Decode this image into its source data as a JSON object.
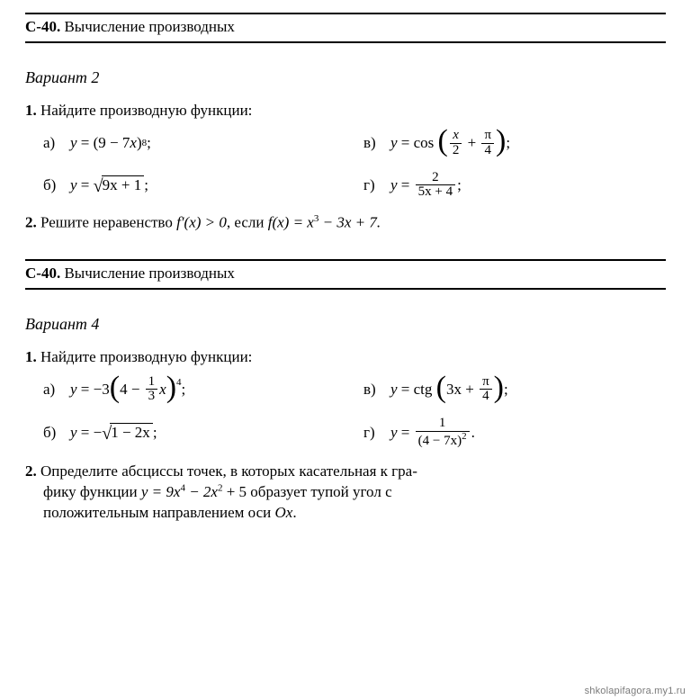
{
  "header": {
    "code": "С-40.",
    "title": "Вычисление производных"
  },
  "variant2": {
    "label": "Вариант 2",
    "task1": {
      "num": "1.",
      "text": "Найдите производную функции:",
      "a": {
        "label": "а)",
        "lhs": "y",
        "eq": "=",
        "rhs_open": "(9 − 7",
        "rhs_var": "x",
        "rhs_close": ")",
        "exp": "8",
        "tail": ";"
      },
      "v": {
        "label": "в)",
        "lhs": "y",
        "eq": "= cos",
        "frac1_top": "x",
        "frac1_bot": "2",
        "plus": "+",
        "frac2_top": "π",
        "frac2_bot": "4",
        "tail": ";"
      },
      "b": {
        "label": "б)",
        "lhs": "y",
        "eq": "=",
        "rad": "9x + 1",
        "tail": ";"
      },
      "g": {
        "label": "г)",
        "lhs": "y",
        "eq": "=",
        "frac_top": "2",
        "frac_bot": "5x + 4",
        "tail": ";"
      }
    },
    "task2": {
      "num": "2.",
      "text_a": "Решите неравенство ",
      "expr1": "f′(x) > 0",
      "text_b": ", если ",
      "expr2": "f(x) = x",
      "exp3": "3",
      "text_c": " − 3x + 7."
    }
  },
  "variant4": {
    "label": "Вариант 4",
    "task1": {
      "num": "1.",
      "text": "Найдите производную функции:",
      "a": {
        "label": "а)",
        "lhs": "y",
        "eq": "= −3",
        "inner1": "4 −",
        "frac_top": "1",
        "frac_bot": "3",
        "inner2": "x",
        "exp": "4",
        "tail": ";"
      },
      "v": {
        "label": "в)",
        "lhs": "y",
        "eq": "= ctg",
        "inner1": "3x +",
        "frac_top": "π",
        "frac_bot": "4",
        "tail": ";"
      },
      "b": {
        "label": "б)",
        "lhs": "y",
        "eq": "= −",
        "rad": "1 − 2x",
        "tail": ";"
      },
      "g": {
        "label": "г)",
        "lhs": "y",
        "eq": "=",
        "frac_top": "1",
        "frac_bot_a": "(4 − 7x)",
        "frac_bot_exp": "2",
        "tail": "."
      }
    },
    "task2": {
      "num": "2.",
      "line1": "Определите абсциссы точек, в которых касательная к гра-",
      "line2a": "фику функции ",
      "expr": "y = 9x",
      "exp4": "4",
      "mid": " − 2x",
      "exp2": "2",
      "line2b": " + 5 образует тупой угол с",
      "line3": "положительным направлением оси ",
      "axis": "Ox",
      "dot": "."
    }
  },
  "watermark": "shkolapifagora.my1.ru"
}
